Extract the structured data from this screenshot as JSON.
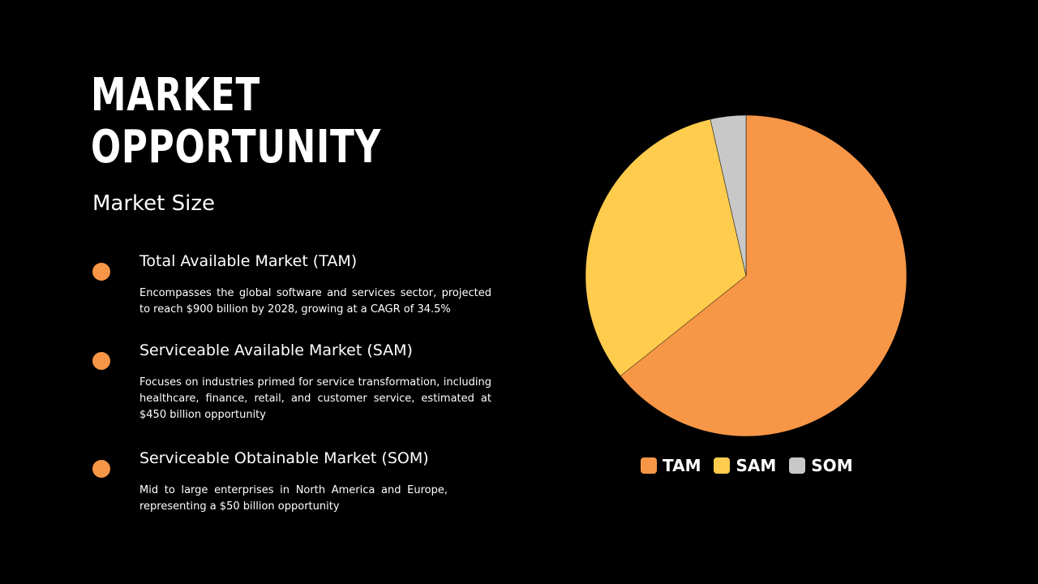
{
  "slide": {
    "title_line1": "MARKET",
    "title_line2": "OPPORTUNITY",
    "subtitle": "Market Size"
  },
  "items": [
    {
      "heading": "Total Available Market (TAM)",
      "description": "Encompasses the global software and services sector, projected to reach $900 billion by 2028, growing at a CAGR of 34.5%",
      "color": "#F79646"
    },
    {
      "heading": "Serviceable Available Market (SAM)",
      "description": "Focuses on industries primed for service transformation, including healthcare, finance, retail, and customer service, estimated at $450 billion opportunity",
      "color": "#F79646"
    },
    {
      "heading": "Serviceable Obtainable Market (SOM)",
      "description": "Mid to large enterprises in North America and Europe, representing a $50 billion opportunity",
      "color": "#F79646"
    }
  ],
  "chart_data": {
    "type": "pie",
    "categories": [
      "TAM",
      "SAM",
      "SOM"
    ],
    "values": [
      900,
      450,
      50
    ],
    "colors": [
      "#F79646",
      "#FFCC4D",
      "#C8C8C8"
    ],
    "start_angle": "12 o'clock",
    "direction": "clockwise",
    "legend_position": "bottom"
  }
}
